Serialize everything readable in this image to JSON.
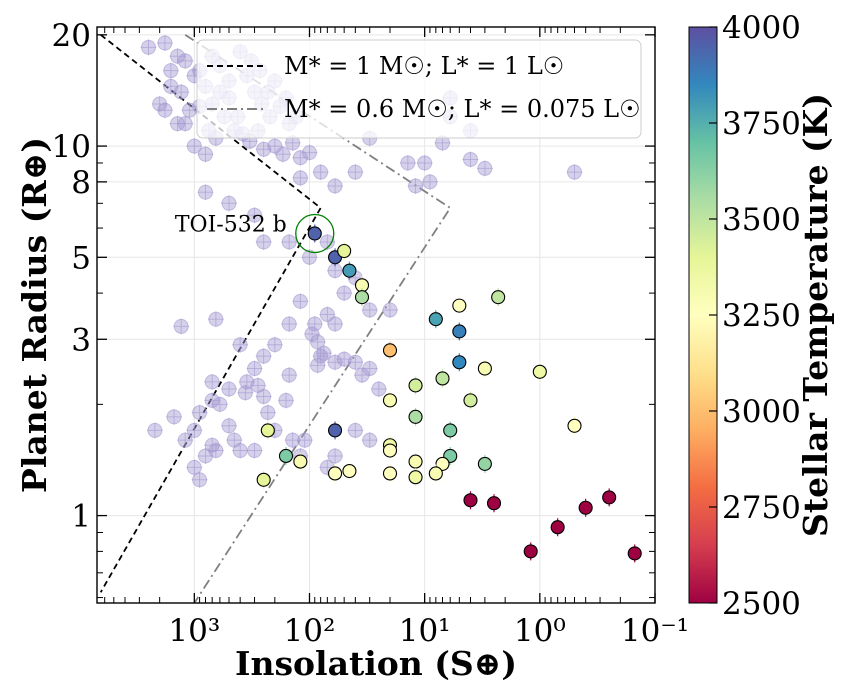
{
  "chart_data": {
    "type": "scatter",
    "xlabel": "Insolation (S⊕)",
    "ylabel": "Planet Radius (R⊕)",
    "xscale": "log",
    "yscale": "log",
    "xlim": [
      7000,
      0.1
    ],
    "ylim": [
      0.58,
      21
    ],
    "x_ticks": [
      1000,
      100,
      10,
      1,
      0.1
    ],
    "x_tick_labels": [
      "10³",
      "10²",
      "10¹",
      "10⁰",
      "10⁻¹"
    ],
    "y_ticks": [
      1,
      3,
      5,
      8,
      10,
      20
    ],
    "y_tick_labels": [
      "1",
      "3",
      "5",
      "8",
      "10",
      "20"
    ],
    "grid": true,
    "legend": {
      "position": "top-right",
      "entries": [
        {
          "label": "M* = 1 M☉; L* = 1 L☉",
          "style": "dashed",
          "color": "#000000"
        },
        {
          "label": "M* = 0.6 M☉; L* = 0.075 L☉",
          "style": "dashdot",
          "color": "#808080"
        }
      ]
    },
    "colorbar": {
      "label": "Stellar Temperature (K)",
      "min": 2500,
      "max": 4000,
      "ticks": [
        2500,
        2750,
        3000,
        3250,
        3500,
        3750,
        4000
      ],
      "colormap": [
        "#9e0142",
        "#d53e4f",
        "#f46d43",
        "#fdae61",
        "#fee08b",
        "#ffffbf",
        "#e6f598",
        "#abdda4",
        "#66c2a5",
        "#3288bd",
        "#5e4fa2"
      ]
    },
    "boundary_lines": [
      {
        "name": "solar",
        "points": [
          [
            6500,
            20
          ],
          [
            80,
            6.8
          ],
          [
            6500,
            0.62
          ]
        ]
      },
      {
        "name": "m-dwarf",
        "points": [
          [
            1200,
            20
          ],
          [
            6,
            6.8
          ],
          [
            1000,
            0.58
          ]
        ]
      }
    ],
    "annotation": {
      "text": "TOI-532 b",
      "x": 90,
      "y": 5.8,
      "ring_color": "#008000"
    },
    "series": [
      {
        "name": "known planets (background)",
        "color": "#a59ad0",
        "points": [
          [
            2500,
            18.5
          ],
          [
            1800,
            19
          ],
          [
            1400,
            17.5
          ],
          [
            900,
            16
          ],
          [
            600,
            16.5
          ],
          [
            500,
            15
          ],
          [
            700,
            13
          ],
          [
            1100,
            12.5
          ],
          [
            1300,
            14
          ],
          [
            800,
            14.5
          ],
          [
            1600,
            16
          ],
          [
            400,
            18
          ],
          [
            350,
            15.5
          ],
          [
            300,
            14
          ],
          [
            260,
            13
          ],
          [
            220,
            12
          ],
          [
            450,
            11
          ],
          [
            550,
            12
          ],
          [
            650,
            10.5
          ],
          [
            750,
            11
          ],
          [
            1000,
            10
          ],
          [
            1200,
            11.5
          ],
          [
            900,
            12.8
          ],
          [
            500,
            13.5
          ],
          [
            420,
            12
          ],
          [
            380,
            10.8
          ],
          [
            330,
            10.3
          ],
          [
            280,
            11
          ],
          [
            250,
            9.8
          ],
          [
            200,
            10
          ],
          [
            170,
            9.5
          ],
          [
            140,
            10.2
          ],
          [
            120,
            9.3
          ],
          [
            100,
            9.6
          ],
          [
            150,
            11.5
          ],
          [
            180,
            12.8
          ],
          [
            230,
            14
          ],
          [
            270,
            16
          ],
          [
            320,
            17
          ],
          [
            200,
            15
          ],
          [
            160,
            13.5
          ],
          [
            130,
            12
          ],
          [
            1600,
            14.5
          ],
          [
            1800,
            12.5
          ],
          [
            1400,
            11.5
          ],
          [
            2000,
            13
          ],
          [
            1000,
            15.5
          ],
          [
            1200,
            17
          ],
          [
            600,
            14
          ],
          [
            700,
            17.5
          ],
          [
            800,
            9.5
          ],
          [
            120,
            8.2
          ],
          [
            80,
            8.5
          ],
          [
            60,
            7.8
          ],
          [
            40,
            8.5
          ],
          [
            30,
            10.5
          ],
          [
            14,
            9
          ],
          [
            10,
            9
          ],
          [
            9,
            8
          ],
          [
            7,
            10.2
          ],
          [
            4,
            9.2
          ],
          [
            3,
            8.7
          ],
          [
            0.5,
            8.5
          ],
          [
            6,
            12
          ],
          [
            4,
            11
          ],
          [
            6,
            13.5
          ],
          [
            12,
            7.8
          ],
          [
            800,
            7.5
          ],
          [
            500,
            7
          ],
          [
            300,
            6.5
          ],
          [
            250,
            5.5
          ],
          [
            150,
            5.5
          ],
          [
            100,
            5
          ],
          [
            70,
            5.5
          ],
          [
            60,
            4.6
          ],
          [
            50,
            4
          ],
          [
            40,
            4.4
          ],
          [
            30,
            3.6
          ],
          [
            20,
            3.6
          ],
          [
            60,
            3.3
          ],
          [
            70,
            3.5
          ],
          [
            150,
            3.3
          ],
          [
            90,
            3.3
          ],
          [
            95,
            3.1
          ],
          [
            85,
            2.95
          ],
          [
            80,
            2.7
          ],
          [
            85,
            2.55
          ],
          [
            75,
            2.75
          ],
          [
            60,
            2.6
          ],
          [
            50,
            2.65
          ],
          [
            40,
            2.6
          ],
          [
            35,
            2.4
          ],
          [
            30,
            2.5
          ],
          [
            25,
            2.2
          ],
          [
            200,
            2.9
          ],
          [
            250,
            2.7
          ],
          [
            300,
            2.5
          ],
          [
            350,
            2.3
          ],
          [
            360,
            2.15
          ],
          [
            500,
            2.2
          ],
          [
            600,
            2
          ],
          [
            700,
            2.05
          ],
          [
            900,
            1.9
          ],
          [
            1000,
            1.7
          ],
          [
            1200,
            1.6
          ],
          [
            700,
            1.55
          ],
          [
            500,
            1.75
          ],
          [
            1500,
            1.85
          ],
          [
            2200,
            1.7
          ],
          [
            280,
            2.25
          ],
          [
            230,
            1.9
          ],
          [
            200,
            1.7
          ],
          [
            110,
            1.6
          ],
          [
            60,
            1.45
          ],
          [
            70,
            1.35
          ],
          [
            120,
            1.45
          ],
          [
            140,
            1.6
          ],
          [
            300,
            1.5
          ],
          [
            400,
            1.5
          ],
          [
            650,
            1.5
          ],
          [
            900,
            1.25
          ],
          [
            1000,
            1.35
          ],
          [
            800,
            1.45
          ],
          [
            450,
            1.6
          ],
          [
            250,
            2.1
          ],
          [
            700,
            2.3
          ],
          [
            1300,
            3.25
          ],
          [
            650,
            3.4
          ],
          [
            400,
            2.9
          ],
          [
            150,
            2.4
          ],
          [
            160,
            2.05
          ],
          [
            40,
            1.7
          ],
          [
            30,
            1.6
          ],
          [
            120,
            3.8
          ]
        ]
      },
      {
        "name": "host-star temperature sample",
        "points": [
          {
            "x": 90,
            "y": 5.8,
            "t": 3950
          },
          {
            "x": 60,
            "y": 5.0,
            "t": 3950
          },
          {
            "x": 45,
            "y": 4.6,
            "t": 3800
          },
          {
            "x": 50,
            "y": 5.2,
            "t": 3400
          },
          {
            "x": 35,
            "y": 4.2,
            "t": 3300
          },
          {
            "x": 35,
            "y": 3.9,
            "t": 3550
          },
          {
            "x": 5,
            "y": 3.7,
            "t": 3250
          },
          {
            "x": 2.3,
            "y": 3.9,
            "t": 3500
          },
          {
            "x": 8,
            "y": 3.4,
            "t": 3780
          },
          {
            "x": 5,
            "y": 3.15,
            "t": 3870
          },
          {
            "x": 20,
            "y": 2.8,
            "t": 3000
          },
          {
            "x": 5,
            "y": 2.6,
            "t": 3850
          },
          {
            "x": 7,
            "y": 2.35,
            "t": 3500
          },
          {
            "x": 12,
            "y": 2.25,
            "t": 3450
          },
          {
            "x": 3,
            "y": 2.5,
            "t": 3300
          },
          {
            "x": 1,
            "y": 2.45,
            "t": 3350
          },
          {
            "x": 20,
            "y": 2.05,
            "t": 3300
          },
          {
            "x": 4,
            "y": 2.05,
            "t": 3450
          },
          {
            "x": 12,
            "y": 1.85,
            "t": 3550
          },
          {
            "x": 0.5,
            "y": 1.75,
            "t": 3250
          },
          {
            "x": 6,
            "y": 1.7,
            "t": 3650
          },
          {
            "x": 230,
            "y": 1.7,
            "t": 3400
          },
          {
            "x": 60,
            "y": 1.7,
            "t": 3950
          },
          {
            "x": 20,
            "y": 1.55,
            "t": 3350
          },
          {
            "x": 160,
            "y": 1.45,
            "t": 3650
          },
          {
            "x": 120,
            "y": 1.4,
            "t": 3300
          },
          {
            "x": 6,
            "y": 1.45,
            "t": 3650
          },
          {
            "x": 12,
            "y": 1.4,
            "t": 3300
          },
          {
            "x": 7,
            "y": 1.38,
            "t": 3250
          },
          {
            "x": 3,
            "y": 1.38,
            "t": 3600
          },
          {
            "x": 20,
            "y": 1.5,
            "t": 3250
          },
          {
            "x": 60,
            "y": 1.3,
            "t": 3250
          },
          {
            "x": 45,
            "y": 1.32,
            "t": 3250
          },
          {
            "x": 8,
            "y": 1.3,
            "t": 3300
          },
          {
            "x": 20,
            "y": 1.3,
            "t": 3250
          },
          {
            "x": 12,
            "y": 1.27,
            "t": 3350
          },
          {
            "x": 250,
            "y": 1.25,
            "t": 3400
          },
          {
            "x": 4,
            "y": 1.1,
            "t": 2500
          },
          {
            "x": 2.5,
            "y": 1.08,
            "t": 2500
          },
          {
            "x": 0.4,
            "y": 1.05,
            "t": 2500
          },
          {
            "x": 0.7,
            "y": 0.93,
            "t": 2500
          },
          {
            "x": 1.2,
            "y": 0.8,
            "t": 2500
          },
          {
            "x": 0.25,
            "y": 1.12,
            "t": 2500
          },
          {
            "x": 0.15,
            "y": 0.79,
            "t": 2500
          }
        ]
      }
    ]
  }
}
